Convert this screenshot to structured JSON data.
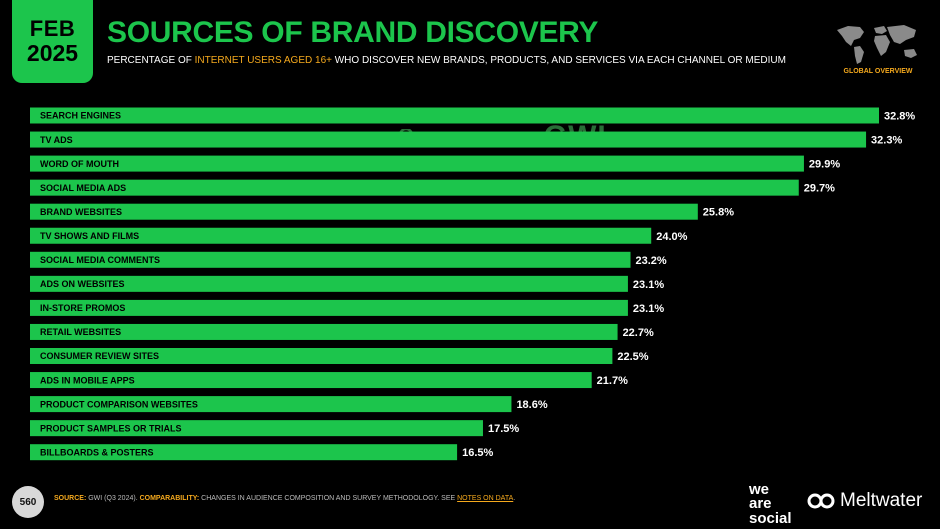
{
  "badge": {
    "month": "FEB",
    "year": "2025"
  },
  "header": {
    "title": "SOURCES OF BRAND DISCOVERY",
    "subtitle_pre": "PERCENTAGE OF ",
    "subtitle_highlight": "INTERNET USERS AGED 16+",
    "subtitle_post": " WHO DISCOVER NEW BRANDS, PRODUCTS, AND SERVICES VIA EACH CHANNEL OR MEDIUM"
  },
  "map_label": "GLOBAL OVERVIEW",
  "watermark": {
    "datareportal": "DATAREPORTAL",
    "gwi": "GWI."
  },
  "chart_data": {
    "type": "bar",
    "orientation": "horizontal",
    "categories": [
      "SEARCH ENGINES",
      "TV ADS",
      "WORD OF MOUTH",
      "SOCIAL MEDIA ADS",
      "BRAND WEBSITES",
      "TV SHOWS AND FILMS",
      "SOCIAL MEDIA COMMENTS",
      "ADS ON WEBSITES",
      "IN-STORE PROMOS",
      "RETAIL WEBSITES",
      "CONSUMER REVIEW SITES",
      "ADS IN MOBILE APPS",
      "PRODUCT COMPARISON WEBSITES",
      "PRODUCT SAMPLES OR TRIALS",
      "BILLBOARDS & POSTERS"
    ],
    "values": [
      32.8,
      32.3,
      29.9,
      29.7,
      25.8,
      24.0,
      23.2,
      23.1,
      23.1,
      22.7,
      22.5,
      21.7,
      18.6,
      17.5,
      16.5
    ],
    "value_labels": [
      "32.8%",
      "32.3%",
      "29.9%",
      "29.7%",
      "25.8%",
      "24.0%",
      "23.2%",
      "23.1%",
      "23.1%",
      "22.7%",
      "22.5%",
      "21.7%",
      "18.6%",
      "17.5%",
      "16.5%"
    ],
    "bar_color": "#1cc54c",
    "xlim": [
      0,
      32.8
    ],
    "grid": false,
    "legend": "none"
  },
  "footer": {
    "page_number": "560",
    "source_label": "SOURCE:",
    "source_value": "GWI (Q3 2024).",
    "comparability_label": "COMPARABILITY:",
    "comparability_text": "CHANGES IN AUDIENCE COMPOSITION AND SURVEY METHODOLOGY. SEE ",
    "notes_link": "NOTES ON DATA",
    "end": "."
  },
  "brands": {
    "we": "we",
    "are": "are",
    "social": "social",
    "meltwater": "Meltwater"
  },
  "colors": {
    "accent": "#1cc54c",
    "highlight": "#f5a91d",
    "background": "#000000"
  }
}
